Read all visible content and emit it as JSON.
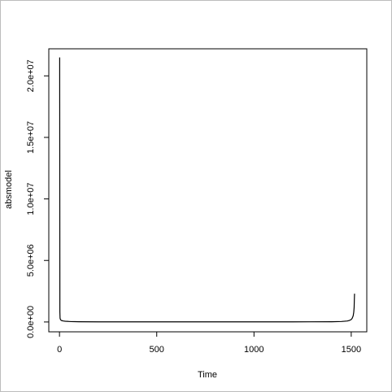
{
  "chart_data": {
    "type": "line",
    "title": "",
    "xlabel": "Time",
    "ylabel": "absmodel",
    "xlim": [
      -55,
      1580
    ],
    "ylim": [
      -800000,
      22200000
    ],
    "x_ticks": [
      0,
      500,
      1000,
      1500
    ],
    "x_tick_labels": [
      "0",
      "500",
      "1000",
      "1500"
    ],
    "y_ticks": [
      0,
      5000000,
      10000000,
      15000000,
      20000000
    ],
    "y_tick_labels": [
      "0.0e+00",
      "5.0e+06",
      "1.0e+07",
      "1.5e+07",
      "2.0e+07"
    ],
    "grid": false,
    "series": [
      {
        "color": "#000000",
        "x": [
          1,
          2,
          3,
          4,
          5,
          6,
          8,
          10,
          15,
          20,
          30,
          40,
          50,
          60,
          80,
          100,
          200,
          400,
          600,
          800,
          1000,
          1200,
          1400,
          1450,
          1480,
          1490,
          1500,
          1505,
          1510,
          1513,
          1515,
          1516,
          1517
        ],
        "y": [
          21500000,
          800000,
          300000,
          250000,
          200000,
          180000,
          150000,
          120000,
          100000,
          80000,
          60000,
          50000,
          40000,
          30000,
          25000,
          20000,
          10000,
          8000,
          8000,
          8000,
          8000,
          10000,
          20000,
          40000,
          80000,
          120000,
          200000,
          300000,
          500000,
          800000,
          1200000,
          1800000,
          2300000
        ]
      }
    ]
  }
}
